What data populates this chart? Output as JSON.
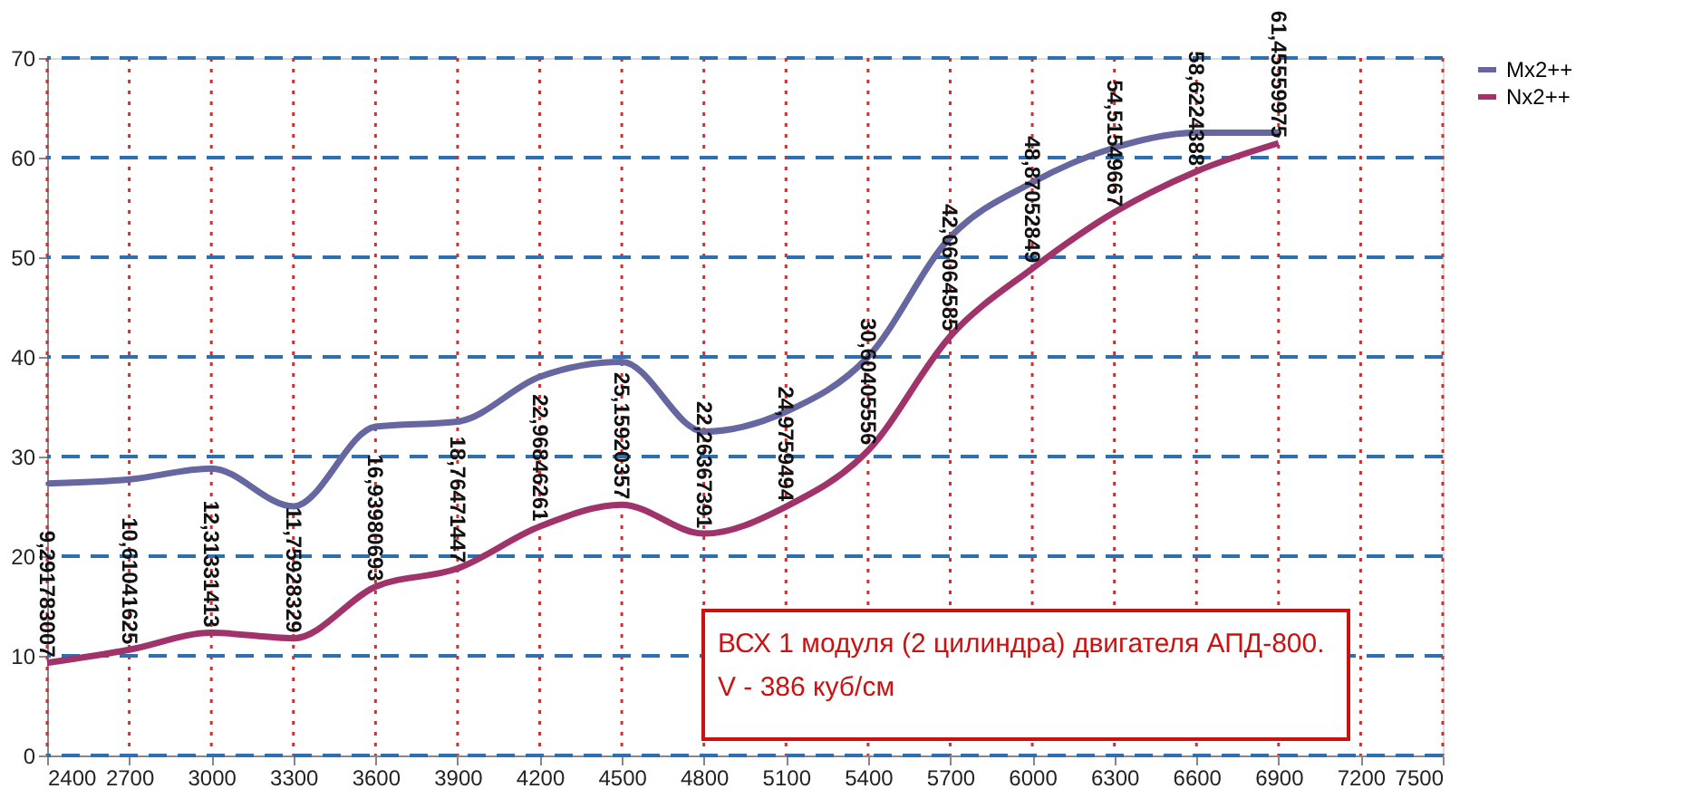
{
  "chart_data": {
    "type": "line",
    "x": [
      2400,
      2700,
      3000,
      3300,
      3600,
      3900,
      4200,
      4500,
      4800,
      5100,
      5400,
      5700,
      6000,
      6300,
      6600,
      6900
    ],
    "series": [
      {
        "name": "Mx2++",
        "color": "#6667a0",
        "values": [
          27.3,
          27.7,
          28.8,
          25.0,
          33.0,
          33.5,
          38.0,
          39.5,
          32.5,
          34.5,
          40.0,
          52.0,
          57.5,
          61.0,
          62.5,
          62.5
        ]
      },
      {
        "name": "Nx2++",
        "color": "#a0336a",
        "values": [
          9.291783007,
          10.61041625,
          12.31331413,
          11.75928329,
          16.93980693,
          18.76471447,
          22.96846261,
          25.15920357,
          22.26367391,
          24.9759494,
          30.60405556,
          42.06064585,
          48.87052849,
          54.51549667,
          58.6224388,
          61.45559975
        ],
        "value_labels": [
          "9,291783007",
          "10,61041625",
          "12,31331413",
          "11,75928329",
          "16,93980693",
          "18,76471447",
          "22,96846261",
          "25,15920357",
          "22,26367391",
          "24,9759494",
          "30,60405556",
          "42,06064585",
          "48,87052849",
          "54,51549667",
          "58,6224388",
          "61,45559975"
        ]
      }
    ],
    "xlim": [
      2400,
      7500
    ],
    "xticks": [
      2400,
      2700,
      3000,
      3300,
      3600,
      3900,
      4200,
      4500,
      4800,
      5100,
      5400,
      5700,
      6000,
      6300,
      6600,
      6900,
      7200,
      7500
    ],
    "ylim": [
      0,
      70
    ],
    "yticks": [
      0,
      10,
      20,
      30,
      40,
      50,
      60,
      70
    ],
    "grid": true,
    "legend": "right",
    "marker": "none",
    "line_style": "solid",
    "annotations": [
      "ВСХ 1 модуля (2 цилиндра) двигателя АПД-800.",
      "V - 386 куб/см"
    ]
  }
}
